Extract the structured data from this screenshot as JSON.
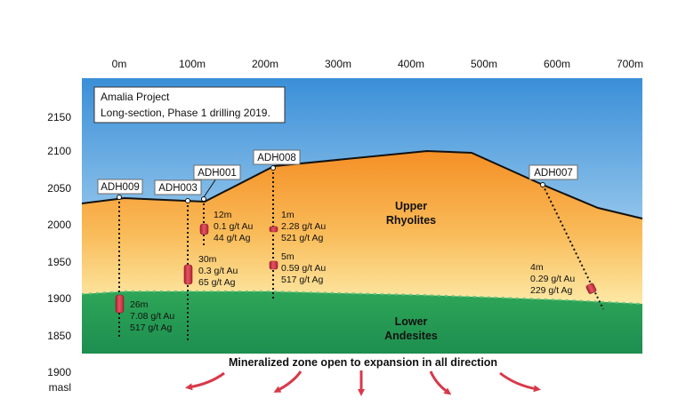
{
  "title_box": {
    "line1": "Amalia Project",
    "line2": "Long-section, Phase 1 drilling 2019."
  },
  "top_axis": [
    "0m",
    "100m",
    "200m",
    "300m",
    "400m",
    "500m",
    "600m",
    "700m"
  ],
  "left_axis": [
    "2150",
    "2100",
    "2050",
    "2000",
    "1950",
    "1900",
    "1850",
    "1900"
  ],
  "left_axis_unit": "masl",
  "zones": {
    "upper_line1": "Upper",
    "upper_line2": "Rhyolites",
    "lower_line1": "Lower",
    "lower_line2": "Andesites"
  },
  "drillholes": [
    {
      "id": "ADH009"
    },
    {
      "id": "ADH003"
    },
    {
      "id": "ADH001"
    },
    {
      "id": "ADH008"
    },
    {
      "id": "ADH007"
    }
  ],
  "intercepts": [
    {
      "hole": "ADH009",
      "lines": [
        "26m",
        "7.08 g/t Au",
        "517 g/t Ag"
      ]
    },
    {
      "hole": "ADH003",
      "lines": [
        "30m",
        "0.3 g/t Au",
        "65 g/t Ag"
      ]
    },
    {
      "hole": "ADH001",
      "lines": [
        "12m",
        "0.1 g/t Au",
        "44 g/t Ag"
      ]
    },
    {
      "hole": "ADH008",
      "lines": [
        "1m",
        "2.28 g/t Au",
        "521 g/t Ag"
      ]
    },
    {
      "hole": "ADH008",
      "lines": [
        "5m",
        "0.59 g/t Au",
        "517 g/t Ag"
      ]
    },
    {
      "hole": "ADH007",
      "lines": [
        "4m",
        "0.29 g/t Au",
        "229 g/t Ag"
      ]
    }
  ],
  "footer_note": "Mineralized zone open to expansion in all direction",
  "colors": {
    "sky_top": "#3a8fd8",
    "sky_bottom": "#ffffff",
    "rhyolite_top": "#f7992f",
    "rhyolite_bottom": "#fbe6a3",
    "andesite_top": "#2fa45a",
    "andesite_bottom": "#1f8f50",
    "intercept": "#d8394a",
    "arrow": "#d8394a"
  }
}
